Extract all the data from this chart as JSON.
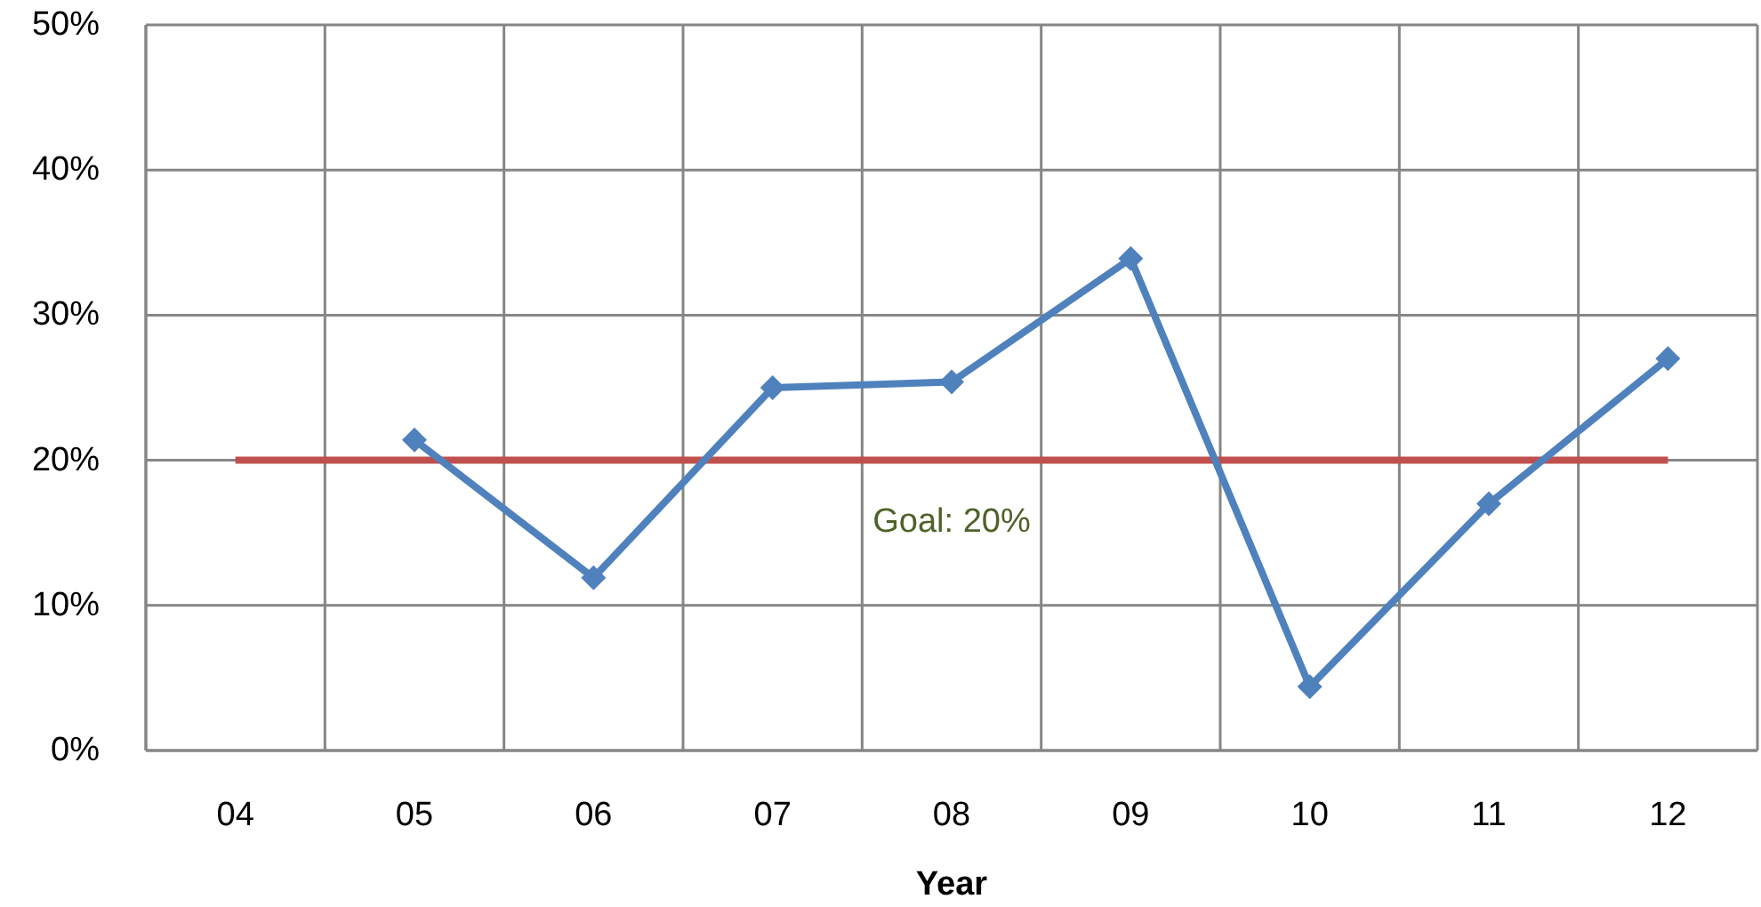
{
  "chart_data": {
    "type": "line",
    "xlabel": "Year",
    "categories": [
      "04",
      "05",
      "06",
      "07",
      "08",
      "09",
      "10",
      "11",
      "12"
    ],
    "series": [
      {
        "color": "#4f81bd",
        "marker": "diamond",
        "values": [
          null,
          21.4,
          11.9,
          25.0,
          25.4,
          33.9,
          4.4,
          17.0,
          27.0
        ]
      },
      {
        "color": "#c0504d",
        "marker": "none",
        "values": [
          20,
          20,
          20,
          20,
          20,
          20,
          20,
          20,
          20
        ]
      }
    ],
    "ylim": [
      0,
      50
    ],
    "yticks": [
      {
        "value": 0,
        "label": "0%"
      },
      {
        "value": 10,
        "label": "10%"
      },
      {
        "value": 20,
        "label": "20%"
      },
      {
        "value": 30,
        "label": "30%"
      },
      {
        "value": 40,
        "label": "40%"
      },
      {
        "value": 50,
        "label": "50%"
      }
    ],
    "grid": true,
    "line_style": "solid",
    "annotations": [
      {
        "text": "Goal: 20%",
        "x": "08",
        "y": 20
      }
    ]
  }
}
